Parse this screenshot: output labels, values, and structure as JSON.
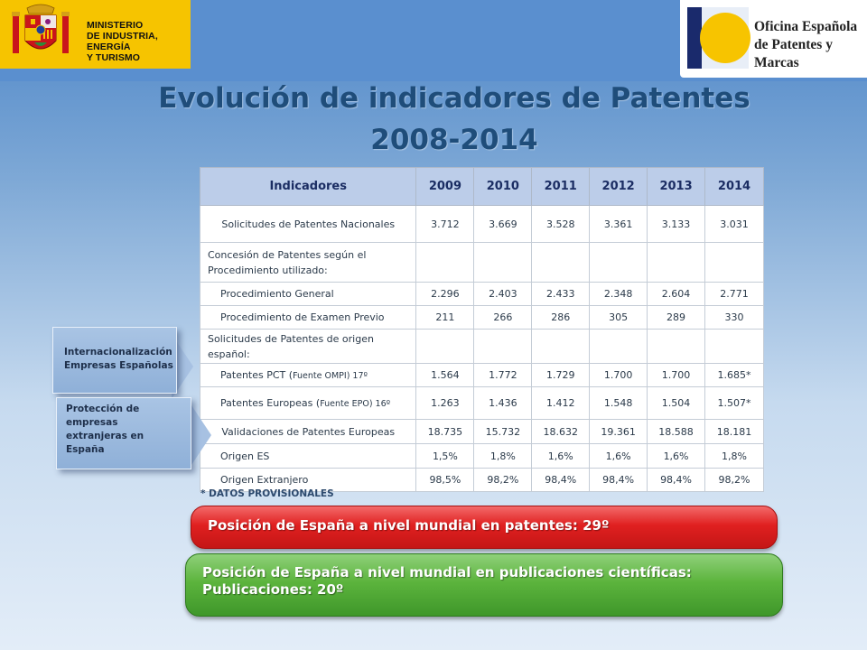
{
  "header": {
    "ministry_line1": "MINISTERIO",
    "ministry_line2": "DE INDUSTRIA, ENERGÍA",
    "ministry_line3": "Y TURISMO",
    "oepm_line1": "Oficina Española",
    "oepm_line2": "de Patentes y Marcas",
    "crest_icon": "spain-coat-of-arms-icon",
    "oepm_icon": "oepm-sun-logo-icon",
    "colors": {
      "ministry_bg": "#f6c400",
      "oepm_sun": "#f7c400",
      "oepm_navy": "#1a2a6c"
    }
  },
  "title": {
    "line1": "Evolución de indicadores  de Patentes",
    "line2": "2008-2014"
  },
  "table": {
    "headers": [
      "Indicadores",
      "2009",
      "2010",
      "2011",
      "2012",
      "2013",
      "2014"
    ],
    "rows": [
      {
        "label": "Solicitudes de Patentes Nacionales",
        "values": [
          "3.712",
          "3.669",
          "3.528",
          "3.361",
          "3.133",
          "3.031"
        ]
      },
      {
        "label": "Concesión de Patentes según el Procedimiento utilizado:",
        "values": [
          "",
          "",
          "",
          "",
          "",
          ""
        ]
      },
      {
        "label": "Procedimiento General",
        "values": [
          "2.296",
          "2.403",
          "2.433",
          "2.348",
          "2.604",
          "2.771"
        ]
      },
      {
        "label": "Procedimiento de Examen Previo",
        "values": [
          "211",
          "266",
          "286",
          "305",
          "289",
          "330"
        ]
      },
      {
        "label": "Solicitudes de Patentes de origen español:",
        "values": [
          "",
          "",
          "",
          "",
          "",
          ""
        ]
      },
      {
        "label": "Patentes PCT (",
        "label_small": "Fuente OMPI)  17º",
        "values": [
          "1.564",
          "1.772",
          "1.729",
          "1.700",
          "1.700",
          "1.685*"
        ]
      },
      {
        "label": "Patentes Europeas (",
        "label_small": "Fuente EPO) 16º",
        "values": [
          "1.263",
          "1.436",
          "1.412",
          "1.548",
          "1.504",
          "1.507*"
        ]
      },
      {
        "label": "Validaciones de Patentes Europeas",
        "values": [
          "18.735",
          "15.732",
          "18.632",
          "19.361",
          "18.588",
          "18.181"
        ]
      },
      {
        "label": "Origen ES",
        "values": [
          "1,5%",
          "1,8%",
          "1,6%",
          "1,6%",
          "1,6%",
          "1,8%"
        ]
      },
      {
        "label": "Origen Extranjero",
        "values": [
          "98,5%",
          "98,2%",
          "98,4%",
          "98,4%",
          "98,4%",
          "98,2%"
        ]
      }
    ]
  },
  "note": "* DATOS PROVISIONALES",
  "side_boxes": [
    {
      "text": "Internacionalización Empresas Españolas"
    },
    {
      "text": "Protección de empresas extranjeras en España"
    }
  ],
  "banners": {
    "red": "Posición de España a nivel mundial en patentes: 29º",
    "green_line1": "Posición de España a nivel mundial en publicaciones científicas:",
    "green_line2": "Publicaciones: 20º"
  }
}
